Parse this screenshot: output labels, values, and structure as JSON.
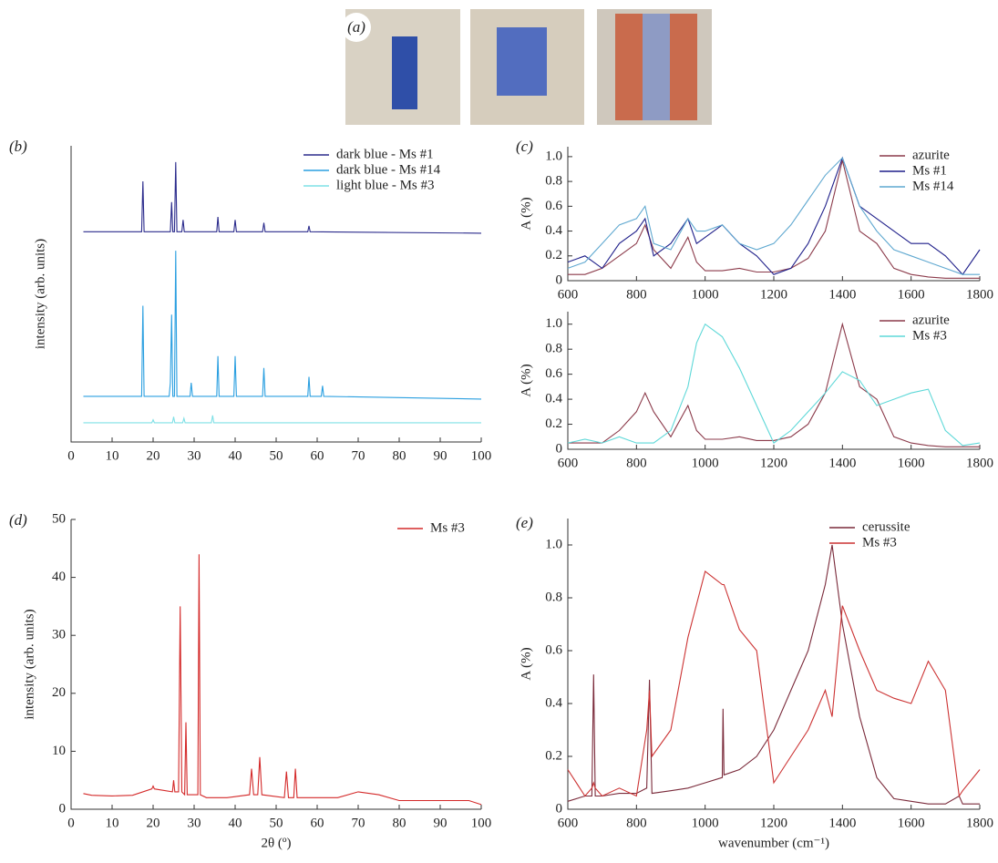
{
  "panel_a": {
    "label": "(a)"
  },
  "chart_data": [
    {
      "type": "line",
      "label": "(b)",
      "y_label": "intensity (arb. units)",
      "xlim": [
        0,
        100
      ],
      "xticks": [
        0,
        10,
        20,
        30,
        40,
        50,
        60,
        70,
        80,
        90,
        100
      ],
      "ylim": [
        0,
        100
      ],
      "legend": "upper right",
      "series": [
        {
          "name": "dark blue - Ms #1",
          "color": "#2b2b8c",
          "x": [
            3,
            10,
            17.2,
            17.5,
            17.8,
            24.2,
            24.5,
            24.8,
            25.2,
            25.5,
            25.8,
            27,
            27.3,
            27.6,
            35.5,
            35.8,
            36.1,
            39.7,
            40,
            40.3,
            46.7,
            47,
            47.3,
            57.7,
            58,
            58.3,
            100
          ],
          "values": [
            71,
            71,
            71,
            88,
            71,
            71,
            81,
            71,
            71,
            94.5,
            71,
            71,
            75,
            71,
            71,
            76,
            71,
            71,
            75,
            71,
            71,
            74,
            71,
            71,
            73,
            71,
            70.5
          ]
        },
        {
          "name": "dark blue - Ms #14",
          "color": "#2a9fe0",
          "x": [
            3,
            10,
            17.2,
            17.5,
            17.8,
            23.9,
            24.2,
            24.5,
            24.8,
            25.2,
            25.5,
            25.8,
            29,
            29.3,
            29.6,
            35.5,
            35.8,
            36.1,
            39.7,
            40,
            40.3,
            46.7,
            47,
            47.3,
            57.7,
            58,
            58.3,
            61,
            61.3,
            61.6,
            100
          ],
          "values": [
            15.4,
            15.4,
            15.4,
            46,
            15.4,
            15.4,
            20,
            43,
            15.4,
            15.4,
            64.6,
            15.4,
            15.4,
            20,
            15.4,
            15.4,
            29,
            15.4,
            15.4,
            29,
            15.4,
            15.4,
            25,
            15.4,
            15.4,
            22,
            15.4,
            15.4,
            19,
            15.4,
            14.5
          ]
        },
        {
          "name": "light blue - Ms #3",
          "color": "#7fe0e6",
          "x": [
            3,
            19.7,
            20,
            20.3,
            24.7,
            25,
            25.3,
            27.2,
            27.5,
            27.8,
            34.2,
            34.5,
            34.8,
            100
          ],
          "values": [
            6.5,
            6.5,
            7.5,
            6.5,
            6.5,
            8.5,
            6.5,
            6.5,
            8,
            6.5,
            6.5,
            9,
            6.5,
            6.5
          ]
        }
      ]
    },
    {
      "type": "line",
      "label": "(c)",
      "y_label": "A (%)",
      "xlim": [
        600,
        1800
      ],
      "xticks": [
        600,
        800,
        1000,
        1200,
        1400,
        1600,
        1800
      ],
      "ylim": [
        0,
        1.08
      ],
      "yticks": [
        0,
        0.2,
        0.4,
        0.6,
        0.8,
        {
          "value": 1,
          "label": "1.0"
        }
      ],
      "legend": "upper right",
      "x": [
        600,
        650,
        700,
        750,
        800,
        825,
        850,
        900,
        950,
        975,
        1000,
        1050,
        1100,
        1150,
        1200,
        1250,
        1300,
        1350,
        1400,
        1450,
        1500,
        1550,
        1600,
        1650,
        1700,
        1750,
        1800
      ],
      "series": [
        {
          "name": "azurite",
          "color": "#8b3a4a",
          "values": [
            0.05,
            0.05,
            0.1,
            0.2,
            0.3,
            0.45,
            0.25,
            0.1,
            0.35,
            0.15,
            0.08,
            0.08,
            0.1,
            0.07,
            0.07,
            0.1,
            0.18,
            0.4,
            0.97,
            0.4,
            0.3,
            0.1,
            0.05,
            0.03,
            0.02,
            0.02,
            0.02
          ]
        },
        {
          "name": "Ms #1",
          "color": "#1f1f8a",
          "values": [
            0.15,
            0.2,
            0.1,
            0.3,
            0.4,
            0.5,
            0.2,
            0.3,
            0.5,
            0.3,
            0.35,
            0.45,
            0.3,
            0.2,
            0.05,
            0.1,
            0.3,
            0.6,
            0.99,
            0.6,
            0.5,
            0.4,
            0.3,
            0.3,
            0.2,
            0.05,
            0.25
          ]
        },
        {
          "name": "Ms #14",
          "color": "#5fa8d0",
          "values": [
            0.1,
            0.15,
            0.3,
            0.45,
            0.5,
            0.6,
            0.3,
            0.25,
            0.5,
            0.4,
            0.4,
            0.45,
            0.3,
            0.25,
            0.3,
            0.45,
            0.65,
            0.85,
            0.99,
            0.6,
            0.4,
            0.25,
            0.2,
            0.15,
            0.1,
            0.05,
            0.05
          ]
        }
      ]
    },
    {
      "type": "line",
      "y_label": "A (%)",
      "xlim": [
        600,
        1800
      ],
      "xticks": [
        600,
        800,
        1000,
        1200,
        1400,
        1600,
        1800
      ],
      "ylim": [
        0,
        1.1
      ],
      "yticks": [
        0,
        0.2,
        0.4,
        0.6,
        0.8,
        {
          "value": 1,
          "label": "1.0"
        }
      ],
      "legend": "upper right",
      "x": [
        600,
        650,
        700,
        750,
        800,
        825,
        850,
        900,
        950,
        975,
        1000,
        1050,
        1100,
        1150,
        1200,
        1250,
        1300,
        1350,
        1400,
        1450,
        1500,
        1550,
        1600,
        1650,
        1700,
        1750,
        1800
      ],
      "series": [
        {
          "name": "azurite",
          "color": "#8b3a4a",
          "values": [
            0.05,
            0.05,
            0.05,
            0.15,
            0.3,
            0.45,
            0.3,
            0.1,
            0.35,
            0.15,
            0.08,
            0.08,
            0.1,
            0.07,
            0.07,
            0.1,
            0.2,
            0.45,
            1.0,
            0.5,
            0.4,
            0.1,
            0.05,
            0.03,
            0.02,
            0.02,
            0.02
          ]
        },
        {
          "name": "Ms #3",
          "color": "#5ed8d8",
          "values": [
            0.05,
            0.08,
            0.05,
            0.1,
            0.05,
            0.05,
            0.05,
            0.15,
            0.5,
            0.85,
            1.0,
            0.9,
            0.65,
            0.35,
            0.05,
            0.15,
            0.3,
            0.45,
            0.62,
            0.55,
            0.35,
            0.4,
            0.45,
            0.48,
            0.15,
            0.03,
            0.05
          ]
        }
      ]
    },
    {
      "type": "line",
      "label": "(d)",
      "y_label": "intensity (arb. units)",
      "x_label": "2θ (º)",
      "xlim": [
        0,
        100
      ],
      "xticks": [
        0,
        10,
        20,
        30,
        40,
        50,
        60,
        70,
        80,
        90,
        100
      ],
      "ylim": [
        0,
        50
      ],
      "yticks": [
        0,
        10,
        20,
        30,
        40,
        50
      ],
      "legend": "upper right",
      "series": [
        {
          "name": "Ms #3",
          "color": "#d42a2a",
          "x": [
            3,
            5,
            10,
            15,
            19.7,
            20,
            20.3,
            24.7,
            25,
            25.3,
            26.2,
            26.6,
            27,
            27.7,
            28,
            28.3,
            30.9,
            31.2,
            31.5,
            33,
            38,
            43.5,
            44,
            44.5,
            45.5,
            46,
            46.5,
            52,
            52.5,
            53,
            54.3,
            54.7,
            55.1,
            58,
            65,
            70,
            75,
            80,
            90,
            97,
            100
          ],
          "values": [
            2.7,
            2.4,
            2.3,
            2.4,
            3.5,
            4,
            3.5,
            3,
            5,
            3,
            3,
            35,
            3,
            2.5,
            15,
            2.5,
            2.5,
            44,
            2.5,
            2,
            2,
            2.5,
            7,
            2.5,
            2.5,
            9,
            2.5,
            2,
            6.5,
            2,
            2,
            7,
            2,
            2,
            2,
            3,
            2.5,
            1.5,
            1.5,
            1.5,
            0.8
          ]
        }
      ]
    },
    {
      "type": "line",
      "label": "(e)",
      "y_label": "A (%)",
      "x_label": "wavenumber (cm⁻¹)",
      "xlim": [
        600,
        1800
      ],
      "xticks": [
        600,
        800,
        1000,
        1200,
        1400,
        1600,
        1800
      ],
      "ylim": [
        0,
        1.1
      ],
      "yticks": [
        0,
        0.2,
        0.4,
        0.6,
        0.8,
        {
          "value": 1,
          "label": "1.0"
        }
      ],
      "legend": "upper right",
      "x": [
        600,
        650,
        670,
        675,
        680,
        700,
        750,
        800,
        830,
        838,
        845,
        900,
        950,
        1000,
        1050,
        1052,
        1055,
        1100,
        1150,
        1200,
        1250,
        1300,
        1350,
        1370,
        1400,
        1450,
        1500,
        1550,
        1600,
        1650,
        1700,
        1740,
        1750,
        1800
      ],
      "series": [
        {
          "name": "cerussite",
          "color": "#7a2a3a",
          "values": [
            0.03,
            0.05,
            0.05,
            0.51,
            0.05,
            0.05,
            0.06,
            0.06,
            0.08,
            0.49,
            0.06,
            0.07,
            0.08,
            0.1,
            0.12,
            0.38,
            0.13,
            0.15,
            0.2,
            0.3,
            0.45,
            0.6,
            0.85,
            1.0,
            0.7,
            0.35,
            0.12,
            0.04,
            0.03,
            0.02,
            0.02,
            0.05,
            0.02,
            0.02
          ]
        },
        {
          "name": "Ms #3",
          "color": "#cc3333",
          "values": [
            0.15,
            0.05,
            0.08,
            0.1,
            0.08,
            0.05,
            0.08,
            0.05,
            0.3,
            0.45,
            0.2,
            0.3,
            0.65,
            0.9,
            0.85,
            0.85,
            0.85,
            0.68,
            0.6,
            0.1,
            0.2,
            0.3,
            0.45,
            0.35,
            0.77,
            0.6,
            0.45,
            0.42,
            0.4,
            0.56,
            0.45,
            0.05,
            0.07,
            0.15
          ]
        }
      ]
    }
  ]
}
